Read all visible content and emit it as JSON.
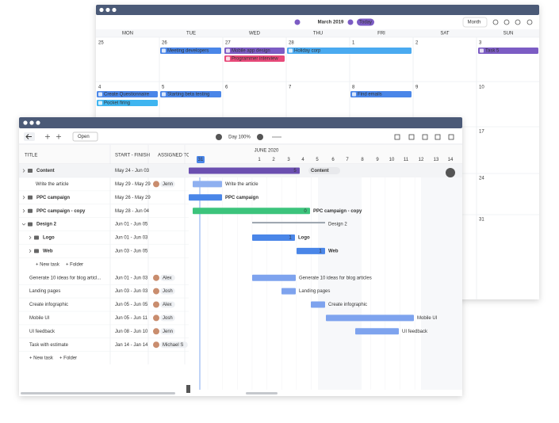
{
  "calendar": {
    "month": "March 2019",
    "today": "Today",
    "view": "Month",
    "weekdays": [
      "MON",
      "TUE",
      "WED",
      "THU",
      "FRI",
      "SAT",
      "SUN"
    ],
    "weeks": [
      [
        "25",
        "26",
        "27",
        "28",
        "1",
        "2",
        "3"
      ],
      [
        "4",
        "5",
        "6",
        "7",
        "8",
        "9",
        "10"
      ]
    ],
    "side_dates": [
      "17",
      "24",
      "31"
    ],
    "events": [
      "Meeting developers",
      "Mobile app design",
      "Programmer interview",
      "Holiday corp",
      "Task 5",
      "Create Questionnaire",
      "Pocket firing",
      "Starting beta testing",
      "Find emails"
    ]
  },
  "gantt": {
    "view": "Open",
    "zoom": "Day 100%",
    "columns": [
      "TITLE",
      "START - FINISH",
      "ASSIGNED TO"
    ],
    "month": "JUNE 2020",
    "days": [
      "31",
      "1",
      "2",
      "3",
      "4",
      "5",
      "6",
      "7",
      "8",
      "9",
      "10",
      "11",
      "12",
      "13",
      "14"
    ],
    "rows": [
      {
        "title": "Content",
        "dates": "May 24 - Jun 03",
        "bar": "Content",
        "count": "5"
      },
      {
        "title": "Write the article",
        "dates": "May 29 - May 29",
        "assignee": "Jenn",
        "bar": "Write the article"
      },
      {
        "title": "PPC campaign",
        "dates": "May 26 - May 29",
        "bar": "PPC campaign"
      },
      {
        "title": "PPC campaign - copy",
        "dates": "May 28 - Jun 04",
        "bar": "PPC campaign - copy",
        "count": "0"
      },
      {
        "title": "Design 2",
        "dates": "Jun 01 - Jun 05",
        "bar": "Design 2"
      },
      {
        "title": "Logo",
        "dates": "Jun 01 - Jun 03",
        "bar": "Logo",
        "count": "1"
      },
      {
        "title": "Web",
        "dates": "Jun 03 - Jun 05",
        "bar": "Web",
        "count": "1"
      },
      {
        "title": "Generate 10 ideas for blog articl...",
        "dates": "Jun 01 - Jun 03",
        "assignee": "Alex",
        "bar": "Generate 10 ideas for blog articles"
      },
      {
        "title": "Landing pages",
        "dates": "Jun 03 - Jun 03",
        "assignee": "Josh",
        "bar": "Landing pages"
      },
      {
        "title": "Create infographic",
        "dates": "Jun 05 - Jun 05",
        "assignee": "Alex",
        "bar": "Create infographic"
      },
      {
        "title": "Mobile UI",
        "dates": "Jun 05 - Jun 11",
        "assignee": "Josh",
        "bar": "Mobile UI"
      },
      {
        "title": "UI feedback",
        "dates": "Jun 08 - Jun 10",
        "assignee": "Jenn",
        "bar": "UI feedback"
      },
      {
        "title": "Task with estimate",
        "dates": "Jan 14 - Jan 14",
        "assignee": "Michael S"
      }
    ],
    "add_task": "+ New task",
    "add_folder": "+ Folder"
  }
}
